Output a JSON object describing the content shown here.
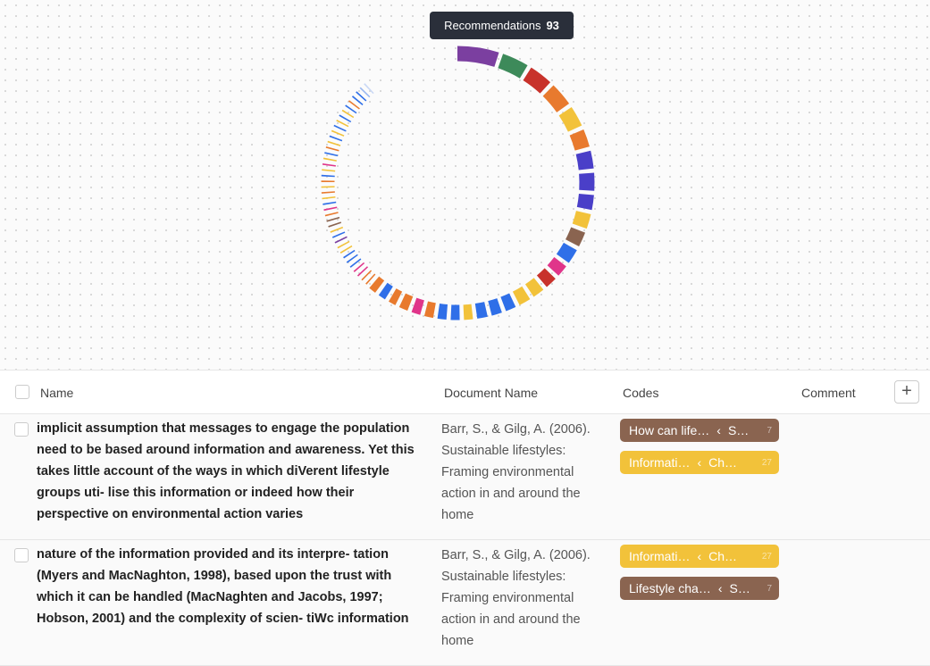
{
  "badge": {
    "label": "Recommendations",
    "count": "93"
  },
  "ring": {
    "values": [
      14,
      9,
      8,
      8,
      7,
      6,
      6,
      6,
      5,
      5,
      5,
      5,
      4,
      4,
      4,
      4,
      3.5,
      3.5,
      3.5,
      3,
      3,
      3,
      3,
      3,
      3,
      2.5,
      2.5,
      2.5,
      0.5,
      0.5,
      0.5,
      0.5,
      0.5,
      0.5,
      0.5,
      0.5,
      0.5,
      0.5,
      0.5,
      0.5,
      0.5,
      0.5,
      0.5,
      0.5,
      0.5,
      0.5,
      0.5,
      0.5,
      0.5,
      0.5,
      0.5,
      0.5,
      0.5,
      0.5,
      0.5,
      0.5,
      0.5,
      0.5,
      0.5,
      0.5,
      0.5,
      0.5,
      0.5,
      0.5,
      0.5,
      0.5,
      0.5,
      0.5
    ],
    "colors": [
      "#7b3fa0",
      "#3d8a5a",
      "#c8322b",
      "#e87a2e",
      "#f2c23a",
      "#e87a2e",
      "#4a3fc8",
      "#4a3fc8",
      "#4a3fc8",
      "#f2c23a",
      "#8a6450",
      "#2f6fe8",
      "#e0358a",
      "#c8322b",
      "#f2c23a",
      "#f2c23a",
      "#2f6fe8",
      "#2f6fe8",
      "#2f6fe8",
      "#f2c23a",
      "#2f6fe8",
      "#2f6fe8",
      "#e87a2e",
      "#e0358a",
      "#e87a2e",
      "#e87a2e",
      "#2f6fe8",
      "#e87a2e",
      "#e87a2e",
      "#e87a2e",
      "#e0358a",
      "#e0358a",
      "#2f6fe8",
      "#2f6fe8",
      "#2f6fe8",
      "#f2c23a",
      "#f2c23a",
      "#7b3fa0",
      "#2f6fe8",
      "#f2c23a",
      "#8a6450",
      "#8a6450",
      "#e87a2e",
      "#e0358a",
      "#2f6fe8",
      "#f2c23a",
      "#e87a2e",
      "#f2c23a",
      "#e87a2e",
      "#2f6fe8",
      "#f2c23a",
      "#e0358a",
      "#f2c23a",
      "#2f6fe8",
      "#e87a2e",
      "#f2c23a",
      "#2f6fe8",
      "#f2c23a",
      "#2f6fe8",
      "#f2c23a",
      "#2f6fe8",
      "#f2c23a",
      "#2f6fe8",
      "#e87a2e",
      "#2f6fe8",
      "#2f6fe8",
      "#9ab8f0",
      "#c9d8f5"
    ]
  },
  "table": {
    "columns": [
      "Name",
      "Document Name",
      "Codes",
      "Comment"
    ],
    "rows": [
      {
        "name": "implicit assumption that messages to engage the population need to be based around information and awareness. Yet this takes little account of the ways in which diVerent lifestyle groups uti- lise this information or indeed how their perspective on environmental action varies",
        "document": "Barr, S., & Gilg, A. (2006). Sustainable lifestyles: Framing environmental action in and around the home",
        "codes": [
          {
            "label": "How can life…",
            "parent": "S…",
            "count": "7",
            "color": "#8a6450"
          },
          {
            "label": "Informati…",
            "parent": "Ch…",
            "count": "27",
            "color": "#f2c23a"
          }
        ]
      },
      {
        "name": "nature of the information provided and its interpre- tation (Myers and MacNaghton, 1998), based upon the trust with which it can be handled (MacNaghten and Jacobs, 1997; Hobson, 2001) and the complexity of scien- tiWc information",
        "document": "Barr, S., & Gilg, A. (2006). Sustainable lifestyles: Framing environmental action in and around the home",
        "codes": [
          {
            "label": "Informati…",
            "parent": "Ch…",
            "count": "27",
            "color": "#f2c23a"
          },
          {
            "label": "Lifestyle cha…",
            "parent": "S…",
            "count": "7",
            "color": "#8a6450"
          }
        ]
      }
    ]
  }
}
